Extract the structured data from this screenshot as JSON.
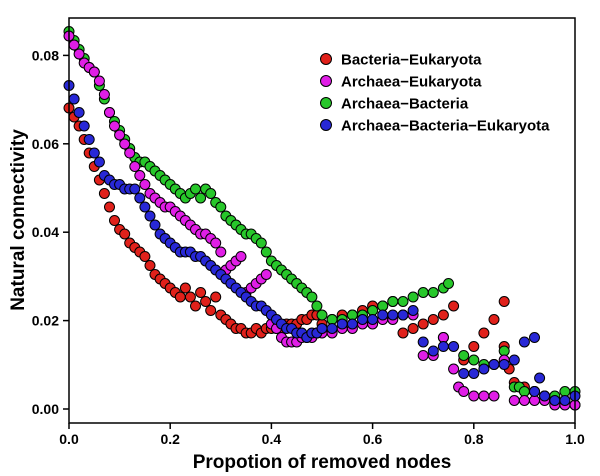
{
  "chart_data": {
    "type": "scatter",
    "title": "",
    "xlabel": "Propotion of removed nodes",
    "ylabel": "Natural connectivity",
    "xlim": [
      0,
      1
    ],
    "ylim": [
      -0.002,
      0.088
    ],
    "xticks": [
      "0.0",
      "0.2",
      "0.4",
      "0.6",
      "0.8",
      "1.0"
    ],
    "yticks": [
      "0.00",
      "0.02",
      "0.04",
      "0.06",
      "0.08"
    ],
    "grid": false,
    "legend_position": "top-right",
    "point_border": "#000000",
    "series": [
      {
        "name": "Bacteria−Eukaryota",
        "color": "#e0211b",
        "points": [
          [
            0.0,
            0.068
          ],
          [
            0.01,
            0.066
          ],
          [
            0.02,
            0.064
          ],
          [
            0.03,
            0.061
          ],
          [
            0.04,
            0.058
          ],
          [
            0.05,
            0.055
          ],
          [
            0.06,
            0.052
          ],
          [
            0.07,
            0.049
          ],
          [
            0.08,
            0.046
          ],
          [
            0.09,
            0.043
          ],
          [
            0.1,
            0.041
          ],
          [
            0.11,
            0.04
          ],
          [
            0.12,
            0.038
          ],
          [
            0.13,
            0.037
          ],
          [
            0.14,
            0.036
          ],
          [
            0.15,
            0.035
          ],
          [
            0.16,
            0.033
          ],
          [
            0.17,
            0.031
          ],
          [
            0.18,
            0.03
          ],
          [
            0.19,
            0.029
          ],
          [
            0.2,
            0.028
          ],
          [
            0.21,
            0.027
          ],
          [
            0.22,
            0.026
          ],
          [
            0.23,
            0.028
          ],
          [
            0.24,
            0.026
          ],
          [
            0.25,
            0.024
          ],
          [
            0.26,
            0.027
          ],
          [
            0.27,
            0.025
          ],
          [
            0.28,
            0.023
          ],
          [
            0.29,
            0.026
          ],
          [
            0.3,
            0.022
          ],
          [
            0.31,
            0.021
          ],
          [
            0.32,
            0.02
          ],
          [
            0.33,
            0.019
          ],
          [
            0.34,
            0.019
          ],
          [
            0.35,
            0.018
          ],
          [
            0.36,
            0.018
          ],
          [
            0.37,
            0.019
          ],
          [
            0.38,
            0.018
          ],
          [
            0.39,
            0.019
          ],
          [
            0.4,
            0.019
          ],
          [
            0.41,
            0.019
          ],
          [
            0.42,
            0.019
          ],
          [
            0.43,
            0.02
          ],
          [
            0.44,
            0.02
          ],
          [
            0.45,
            0.02
          ],
          [
            0.46,
            0.021
          ],
          [
            0.47,
            0.021
          ],
          [
            0.48,
            0.022
          ],
          [
            0.49,
            0.022
          ],
          [
            0.5,
            0.02
          ],
          [
            0.52,
            0.021
          ],
          [
            0.54,
            0.022
          ],
          [
            0.56,
            0.022
          ],
          [
            0.58,
            0.023
          ],
          [
            0.6,
            0.024
          ],
          [
            0.62,
            0.024
          ],
          [
            0.64,
            0.025
          ],
          [
            0.66,
            0.018
          ],
          [
            0.68,
            0.019
          ],
          [
            0.7,
            0.02
          ],
          [
            0.72,
            0.021
          ],
          [
            0.74,
            0.022
          ],
          [
            0.76,
            0.024
          ],
          [
            0.78,
            0.012
          ],
          [
            0.8,
            0.015
          ],
          [
            0.82,
            0.018
          ],
          [
            0.84,
            0.021
          ],
          [
            0.86,
            0.025
          ],
          [
            0.87,
            0.01
          ],
          [
            0.86,
            0.015
          ],
          [
            0.88,
            0.007
          ],
          [
            0.9,
            0.006
          ],
          [
            0.92,
            0.005
          ],
          [
            0.94,
            0.004
          ],
          [
            0.96,
            0.003
          ],
          [
            0.98,
            0.003
          ],
          [
            1.0,
            0.002
          ]
        ]
      },
      {
        "name": "Archaea−Eukaryota",
        "color": "#e01ee6",
        "points": [
          [
            0.0,
            0.084
          ],
          [
            0.01,
            0.082
          ],
          [
            0.02,
            0.08
          ],
          [
            0.03,
            0.078
          ],
          [
            0.04,
            0.077
          ],
          [
            0.05,
            0.076
          ],
          [
            0.06,
            0.074
          ],
          [
            0.07,
            0.071
          ],
          [
            0.08,
            0.067
          ],
          [
            0.09,
            0.064
          ],
          [
            0.1,
            0.062
          ],
          [
            0.11,
            0.06
          ],
          [
            0.12,
            0.058
          ],
          [
            0.13,
            0.055
          ],
          [
            0.14,
            0.053
          ],
          [
            0.15,
            0.051
          ],
          [
            0.16,
            0.049
          ],
          [
            0.17,
            0.048
          ],
          [
            0.18,
            0.047
          ],
          [
            0.19,
            0.046
          ],
          [
            0.2,
            0.046
          ],
          [
            0.21,
            0.045
          ],
          [
            0.22,
            0.044
          ],
          [
            0.23,
            0.043
          ],
          [
            0.24,
            0.042
          ],
          [
            0.25,
            0.041
          ],
          [
            0.26,
            0.04
          ],
          [
            0.27,
            0.04
          ],
          [
            0.28,
            0.039
          ],
          [
            0.29,
            0.038
          ],
          [
            0.3,
            0.036
          ],
          [
            0.31,
            0.032
          ],
          [
            0.32,
            0.033
          ],
          [
            0.33,
            0.034
          ],
          [
            0.34,
            0.035
          ],
          [
            0.35,
            0.027
          ],
          [
            0.36,
            0.028
          ],
          [
            0.37,
            0.029
          ],
          [
            0.38,
            0.03
          ],
          [
            0.39,
            0.031
          ],
          [
            0.4,
            0.02
          ],
          [
            0.41,
            0.019
          ],
          [
            0.42,
            0.017
          ],
          [
            0.43,
            0.016
          ],
          [
            0.44,
            0.016
          ],
          [
            0.45,
            0.016
          ],
          [
            0.46,
            0.017
          ],
          [
            0.47,
            0.017
          ],
          [
            0.48,
            0.017
          ],
          [
            0.49,
            0.018
          ],
          [
            0.5,
            0.018
          ],
          [
            0.52,
            0.018
          ],
          [
            0.54,
            0.019
          ],
          [
            0.56,
            0.019
          ],
          [
            0.58,
            0.02
          ],
          [
            0.6,
            0.02
          ],
          [
            0.62,
            0.021
          ],
          [
            0.64,
            0.021
          ],
          [
            0.66,
            0.022
          ],
          [
            0.68,
            0.022
          ],
          [
            0.7,
            0.013
          ],
          [
            0.72,
            0.013
          ],
          [
            0.74,
            0.017
          ],
          [
            0.76,
            0.01
          ],
          [
            0.77,
            0.006
          ],
          [
            0.78,
            0.005
          ],
          [
            0.8,
            0.004
          ],
          [
            0.82,
            0.004
          ],
          [
            0.84,
            0.004
          ],
          [
            0.86,
            0.012
          ],
          [
            0.88,
            0.003
          ],
          [
            0.9,
            0.003
          ],
          [
            0.92,
            0.003
          ],
          [
            0.94,
            0.003
          ],
          [
            0.96,
            0.002
          ],
          [
            0.98,
            0.002
          ],
          [
            1.0,
            0.002
          ]
        ]
      },
      {
        "name": "Archaea−Bacteria",
        "color": "#27c72a",
        "points": [
          [
            0.0,
            0.085
          ],
          [
            0.01,
            0.083
          ],
          [
            0.02,
            0.081
          ],
          [
            0.03,
            0.079
          ],
          [
            0.04,
            0.077
          ],
          [
            0.05,
            0.076
          ],
          [
            0.06,
            0.073
          ],
          [
            0.07,
            0.07
          ],
          [
            0.08,
            0.067
          ],
          [
            0.09,
            0.065
          ],
          [
            0.1,
            0.063
          ],
          [
            0.11,
            0.061
          ],
          [
            0.12,
            0.059
          ],
          [
            0.13,
            0.057
          ],
          [
            0.14,
            0.056
          ],
          [
            0.15,
            0.056
          ],
          [
            0.16,
            0.055
          ],
          [
            0.17,
            0.054
          ],
          [
            0.18,
            0.053
          ],
          [
            0.19,
            0.052
          ],
          [
            0.2,
            0.051
          ],
          [
            0.21,
            0.05
          ],
          [
            0.22,
            0.049
          ],
          [
            0.23,
            0.048
          ],
          [
            0.24,
            0.049
          ],
          [
            0.25,
            0.05
          ],
          [
            0.26,
            0.048
          ],
          [
            0.27,
            0.05
          ],
          [
            0.28,
            0.049
          ],
          [
            0.29,
            0.047
          ],
          [
            0.3,
            0.046
          ],
          [
            0.31,
            0.044
          ],
          [
            0.32,
            0.043
          ],
          [
            0.33,
            0.042
          ],
          [
            0.34,
            0.041
          ],
          [
            0.35,
            0.04
          ],
          [
            0.36,
            0.04
          ],
          [
            0.37,
            0.039
          ],
          [
            0.38,
            0.038
          ],
          [
            0.39,
            0.036
          ],
          [
            0.4,
            0.034
          ],
          [
            0.41,
            0.033
          ],
          [
            0.42,
            0.032
          ],
          [
            0.43,
            0.031
          ],
          [
            0.44,
            0.03
          ],
          [
            0.45,
            0.029
          ],
          [
            0.46,
            0.028
          ],
          [
            0.47,
            0.027
          ],
          [
            0.48,
            0.026
          ],
          [
            0.49,
            0.024
          ],
          [
            0.5,
            0.022
          ],
          [
            0.52,
            0.021
          ],
          [
            0.54,
            0.021
          ],
          [
            0.56,
            0.022
          ],
          [
            0.58,
            0.022
          ],
          [
            0.6,
            0.023
          ],
          [
            0.62,
            0.024
          ],
          [
            0.64,
            0.025
          ],
          [
            0.66,
            0.025
          ],
          [
            0.68,
            0.026
          ],
          [
            0.7,
            0.027
          ],
          [
            0.72,
            0.027
          ],
          [
            0.74,
            0.028
          ],
          [
            0.75,
            0.029
          ],
          [
            0.74,
            0.017
          ],
          [
            0.78,
            0.013
          ],
          [
            0.8,
            0.012
          ],
          [
            0.82,
            0.011
          ],
          [
            0.84,
            0.011
          ],
          [
            0.86,
            0.014
          ],
          [
            0.88,
            0.006
          ],
          [
            0.89,
            0.006
          ],
          [
            0.9,
            0.005
          ],
          [
            0.92,
            0.005
          ],
          [
            0.94,
            0.004
          ],
          [
            0.96,
            0.004
          ],
          [
            0.98,
            0.005
          ],
          [
            1.0,
            0.005
          ]
        ]
      },
      {
        "name": "Archaea−Bacteria−Eukaryota",
        "color": "#2828d6",
        "points": [
          [
            0.0,
            0.073
          ],
          [
            0.01,
            0.07
          ],
          [
            0.02,
            0.067
          ],
          [
            0.03,
            0.064
          ],
          [
            0.04,
            0.061
          ],
          [
            0.05,
            0.058
          ],
          [
            0.06,
            0.056
          ],
          [
            0.07,
            0.053
          ],
          [
            0.08,
            0.052
          ],
          [
            0.09,
            0.051
          ],
          [
            0.1,
            0.051
          ],
          [
            0.11,
            0.05
          ],
          [
            0.12,
            0.05
          ],
          [
            0.13,
            0.05
          ],
          [
            0.14,
            0.048
          ],
          [
            0.15,
            0.046
          ],
          [
            0.16,
            0.044
          ],
          [
            0.17,
            0.042
          ],
          [
            0.18,
            0.04
          ],
          [
            0.19,
            0.039
          ],
          [
            0.2,
            0.038
          ],
          [
            0.21,
            0.037
          ],
          [
            0.22,
            0.036
          ],
          [
            0.23,
            0.036
          ],
          [
            0.24,
            0.036
          ],
          [
            0.25,
            0.035
          ],
          [
            0.26,
            0.035
          ],
          [
            0.27,
            0.034
          ],
          [
            0.28,
            0.033
          ],
          [
            0.29,
            0.032
          ],
          [
            0.3,
            0.031
          ],
          [
            0.31,
            0.03
          ],
          [
            0.32,
            0.029
          ],
          [
            0.33,
            0.028
          ],
          [
            0.34,
            0.027
          ],
          [
            0.35,
            0.026
          ],
          [
            0.36,
            0.025
          ],
          [
            0.37,
            0.024
          ],
          [
            0.38,
            0.024
          ],
          [
            0.39,
            0.023
          ],
          [
            0.4,
            0.022
          ],
          [
            0.41,
            0.021
          ],
          [
            0.42,
            0.02
          ],
          [
            0.43,
            0.019
          ],
          [
            0.44,
            0.019
          ],
          [
            0.45,
            0.018
          ],
          [
            0.46,
            0.018
          ],
          [
            0.47,
            0.017
          ],
          [
            0.48,
            0.018
          ],
          [
            0.49,
            0.018
          ],
          [
            0.5,
            0.019
          ],
          [
            0.52,
            0.019
          ],
          [
            0.54,
            0.02
          ],
          [
            0.56,
            0.02
          ],
          [
            0.58,
            0.021
          ],
          [
            0.6,
            0.021
          ],
          [
            0.62,
            0.022
          ],
          [
            0.64,
            0.022
          ],
          [
            0.66,
            0.022
          ],
          [
            0.68,
            0.023
          ],
          [
            0.7,
            0.016
          ],
          [
            0.72,
            0.014
          ],
          [
            0.74,
            0.015
          ],
          [
            0.76,
            0.015
          ],
          [
            0.78,
            0.009
          ],
          [
            0.8,
            0.009
          ],
          [
            0.82,
            0.01
          ],
          [
            0.84,
            0.011
          ],
          [
            0.86,
            0.011
          ],
          [
            0.88,
            0.012
          ],
          [
            0.9,
            0.016
          ],
          [
            0.92,
            0.017
          ],
          [
            0.93,
            0.008
          ],
          [
            0.92,
            0.005
          ],
          [
            0.94,
            0.004
          ],
          [
            0.96,
            0.003
          ],
          [
            0.98,
            0.003
          ],
          [
            1.0,
            0.004
          ]
        ]
      }
    ]
  }
}
